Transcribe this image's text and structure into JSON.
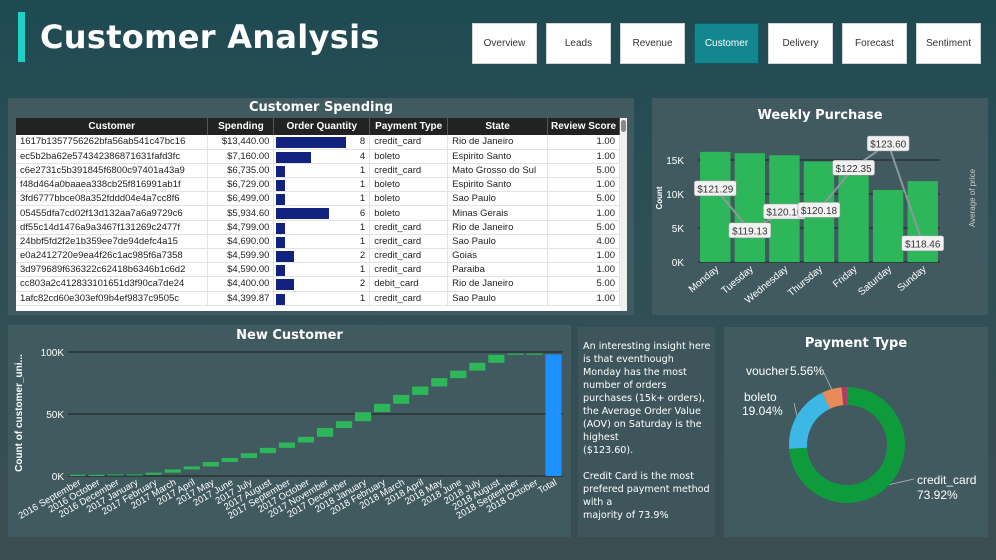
{
  "header": {
    "title": "Customer Analysis"
  },
  "nav": [
    {
      "label": "Overview",
      "active": false
    },
    {
      "label": "Leads",
      "active": false
    },
    {
      "label": "Revenue",
      "active": false
    },
    {
      "label": "Customer",
      "active": true
    },
    {
      "label": "Delivery",
      "active": false
    },
    {
      "label": "Forecast",
      "active": false
    },
    {
      "label": "Sentiment",
      "active": false
    }
  ],
  "spending_table": {
    "title": "Customer Spending",
    "columns": [
      "Customer",
      "Spending",
      "Order Quantity",
      "Payment Type",
      "State",
      "Review Score"
    ],
    "rows": [
      [
        "1617b1357756262bfa56ab541c47bc16",
        "$13,440.00",
        8,
        "credit_card",
        "Rio de Janeiro",
        "1.00"
      ],
      [
        "ec5b2ba62e574342386871631fafd3fc",
        "$7,160.00",
        4,
        "boleto",
        "Espirito Santo",
        "1.00"
      ],
      [
        "c6e2731c5b391845f6800c97401a43a9",
        "$6,735.00",
        1,
        "credit_card",
        "Mato Grosso do Sul",
        "5.00"
      ],
      [
        "f48d464a0baaea338cb25f816991ab1f",
        "$6,729.00",
        1,
        "boleto",
        "Espirito Santo",
        "1.00"
      ],
      [
        "3fd6777bbce08a352fddd04e4a7cc8f6",
        "$6,499.00",
        1,
        "boleto",
        "Sao Paulo",
        "5.00"
      ],
      [
        "05455dfa7cd02f13d132aa7a6a9729c6",
        "$5,934.60",
        6,
        "boleto",
        "Minas Gerais",
        "1.00"
      ],
      [
        "df55c14d1476a9a3467f131269c2477f",
        "$4,799.00",
        1,
        "credit_card",
        "Rio de Janeiro",
        "5.00"
      ],
      [
        "24bbf5fd2f2e1b359ee7de94defc4a15",
        "$4,690.00",
        1,
        "credit_card",
        "Sao Paulo",
        "4.00"
      ],
      [
        "e0a2412720e9ea4f26c1ac985f6a7358",
        "$4,599.90",
        2,
        "credit_card",
        "Goias",
        "1.00"
      ],
      [
        "3d979689f636322c62418b6346b1c6d2",
        "$4,590.00",
        1,
        "credit_card",
        "Paraiba",
        "1.00"
      ],
      [
        "cc803a2c412833101651d3f90ca7de24",
        "$4,400.00",
        2,
        "debit_card",
        "Rio de Janeiro",
        "5.00"
      ],
      [
        "1afc82cd60e303ef09b4ef9837c9505c",
        "$4,399.87",
        1,
        "credit_card",
        "Sao Paulo",
        "1.00"
      ]
    ],
    "qty_max": 8
  },
  "weekly": {
    "title": "Weekly Purchase",
    "ylabel": "Count",
    "y2label": "Average of price",
    "yticks": [
      "0K",
      "5K",
      "10K",
      "15K"
    ],
    "chart_data": {
      "type": "bar",
      "categories": [
        "Monday",
        "Tuesday",
        "Wednesday",
        "Thursday",
        "Friday",
        "Saturday",
        "Sunday"
      ],
      "series": [
        {
          "name": "Count",
          "values": [
            16200,
            16000,
            15700,
            14800,
            14200,
            10600,
            11900
          ]
        },
        {
          "name": "Average of price",
          "values": [
            121.29,
            119.13,
            120.1,
            120.18,
            122.35,
            123.6,
            118.46
          ]
        }
      ],
      "labels": [
        "$121.29",
        "$119.13",
        "$120.10",
        "$120.18",
        "$122.35",
        "$123.60",
        "$118.46"
      ],
      "ylim": [
        0,
        20000
      ],
      "y2lim": [
        117.5,
        124.5
      ]
    }
  },
  "new_customer": {
    "title": "New Customer",
    "ylabel": "Count of customer_uni...",
    "yticks": [
      "0K",
      "50K",
      "100K"
    ],
    "chart_data": {
      "type": "bar",
      "categories": [
        "2016 September",
        "2016 October",
        "2016 December",
        "2017 January",
        "2017 February",
        "2017 March",
        "2017 April",
        "2017 May",
        "2017 June",
        "2017 July",
        "2017 August",
        "2017 September",
        "2017 October",
        "2017 November",
        "2017 December",
        "2018 January",
        "2018 February",
        "2018 March",
        "2018 April",
        "2018 May",
        "2018 June",
        "2018 July",
        "2018 August",
        "2018 September",
        "2018 October",
        "Total"
      ],
      "cumulative": [
        0,
        300,
        300,
        1000,
        2700,
        5300,
        7700,
        11300,
        14500,
        18400,
        22700,
        27000,
        31600,
        38700,
        44200,
        51500,
        58200,
        65400,
        72200,
        78900,
        85000,
        91300,
        97800,
        97800,
        98000,
        98000
      ],
      "ylim": [
        0,
        100000
      ]
    }
  },
  "insight": {
    "text": "An interesting insight here is that eventhough Monday has the most number of orders purchases (15k+ orders), the Average Order Value (AOV) on Saturday is the highest\n($123.60).\n\nCredit Card is the most prefered payment method with a\nmajority of 73.9%"
  },
  "payment": {
    "title": "Payment Type",
    "chart_data": {
      "type": "pie",
      "slices": [
        {
          "name": "credit_card",
          "value": 73.92,
          "label": "73.92%",
          "color": "#0d9b3c"
        },
        {
          "name": "boleto",
          "value": 19.04,
          "label": "19.04%",
          "color": "#3db8e6"
        },
        {
          "name": "voucher",
          "value": 5.56,
          "label": "5.56%",
          "color": "#e88a5a"
        },
        {
          "name": "debit_card",
          "value": 1.48,
          "label": "",
          "color": "#b23a6a"
        }
      ]
    }
  },
  "colors": {
    "bar_green": "#2db65a",
    "accent": "#1fd1c5",
    "table_bar": "#11237f",
    "total_bar": "#1e90ff"
  }
}
